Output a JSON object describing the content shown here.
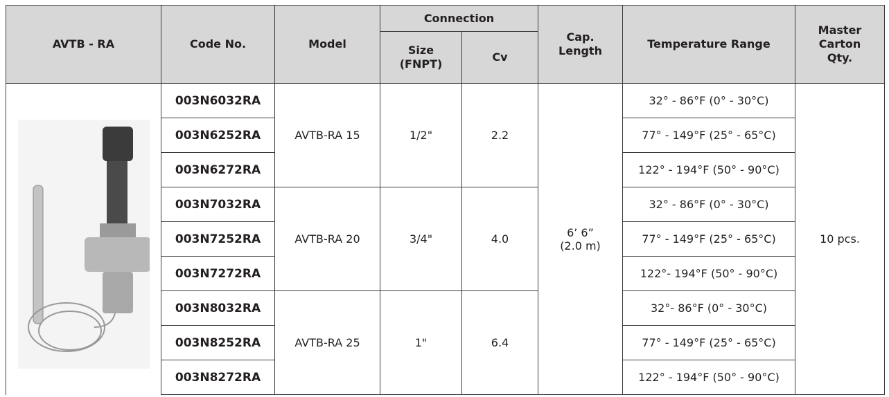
{
  "header": {
    "product": "AVTB - RA",
    "code_no": "Code No.",
    "model": "Model",
    "connection": "Connection",
    "size": "Size\n(FNPT)",
    "cv": "Cv",
    "cap_length": "Cap.\nLength",
    "temperature_range": "Temperature Range",
    "master_carton_qty": "Master\nCarton\nQty."
  },
  "cap_length": "6’ 6”\n(2.0 m)",
  "master_carton_qty": "10 pcs.",
  "groups": [
    {
      "model": "AVTB-RA 15",
      "size": "1/2\"",
      "cv": "2.2",
      "items": [
        {
          "code": "003N6032RA",
          "temperature_range": "32° - 86°F (0° - 30°C)"
        },
        {
          "code": "003N6252RA",
          "temperature_range": "77° - 149°F (25° - 65°C)"
        },
        {
          "code": "003N6272RA",
          "temperature_range": "122° - 194°F (50° - 90°C)"
        }
      ]
    },
    {
      "model": "AVTB-RA 20",
      "size": "3/4\"",
      "cv": "4.0",
      "items": [
        {
          "code": "003N7032RA",
          "temperature_range": "32° - 86°F (0° - 30°C)"
        },
        {
          "code": "003N7252RA",
          "temperature_range": "77° - 149°F (25° - 65°C)"
        },
        {
          "code": "003N7272RA",
          "temperature_range": "122°- 194°F (50° - 90°C)"
        }
      ]
    },
    {
      "model": "AVTB-RA 25",
      "size": "1\"",
      "cv": "6.4",
      "items": [
        {
          "code": "003N8032RA",
          "temperature_range": "32°- 86°F (0° - 30°C)"
        },
        {
          "code": "003N8252RA",
          "temperature_range": "77° - 149°F (25° - 65°C)"
        },
        {
          "code": "003N8272RA",
          "temperature_range": "122° - 194°F (50° - 90°C)"
        }
      ]
    }
  ]
}
